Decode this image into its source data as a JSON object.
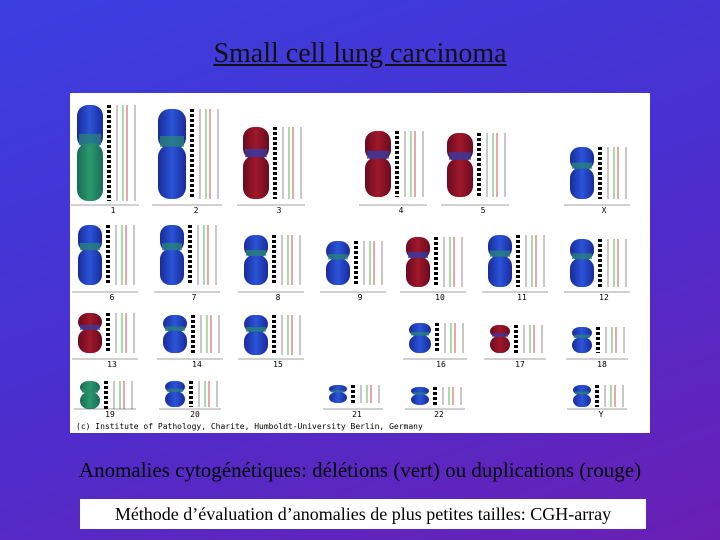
{
  "title": "Small cell lung carcinoma",
  "karyotype": {
    "chromosomes": [
      "1",
      "2",
      "3",
      "4",
      "5",
      "X",
      "6",
      "7",
      "8",
      "9",
      "10",
      "11",
      "12",
      "13",
      "14",
      "15",
      "16",
      "17",
      "18",
      "19",
      "20",
      "21",
      "22",
      "Y"
    ],
    "credit": "(c) Institute of Pathology, Charite, Humboldt-University Berlin, Germany"
  },
  "caption": "Anomalies cytogénétiques: délétions (vert) ou duplications (rouge)",
  "note": "Méthode d’évaluation d’anomalies de plus petites tailles: CGH-array"
}
